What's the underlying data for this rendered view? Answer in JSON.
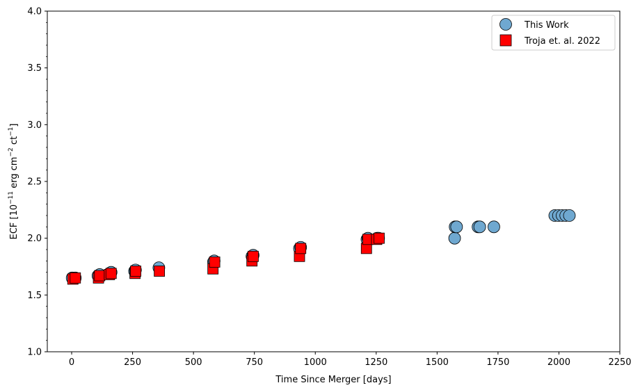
{
  "chart_data": {
    "type": "scatter",
    "xlabel": "Time Since Merger [days]",
    "ylabel": {
      "prefix": "ECF [10",
      "exp1": "−11",
      "mid1": " erg cm",
      "exp2": "−2",
      "mid2": " ct",
      "exp3": "−1",
      "suffix": "]"
    },
    "xlim": [
      -100,
      2250
    ],
    "ylim": [
      1.0,
      4.0
    ],
    "x_ticks": [
      0,
      250,
      500,
      750,
      1000,
      1250,
      1500,
      1750,
      2000,
      2250
    ],
    "y_ticks": [
      1.0,
      1.5,
      2.0,
      2.5,
      3.0,
      3.5,
      4.0
    ],
    "x_ticks_text": [
      "0",
      "250",
      "500",
      "750",
      "1000",
      "1250",
      "1500",
      "1750",
      "2000",
      "2250"
    ],
    "y_ticks_text": [
      "1.0",
      "1.5",
      "2.0",
      "2.5",
      "3.0",
      "3.5",
      "4.0"
    ],
    "grid": false,
    "legend_position": "top-right",
    "series": [
      {
        "name": "This Work",
        "marker": "circle",
        "color": "#6fa8d0",
        "edgecolor": "#000000",
        "points": [
          [
            2,
            1.65
          ],
          [
            15,
            1.65
          ],
          [
            108,
            1.67
          ],
          [
            115,
            1.68
          ],
          [
            155,
            1.69
          ],
          [
            162,
            1.7
          ],
          [
            258,
            1.71
          ],
          [
            262,
            1.72
          ],
          [
            358,
            1.74
          ],
          [
            582,
            1.79
          ],
          [
            585,
            1.8
          ],
          [
            740,
            1.84
          ],
          [
            745,
            1.85
          ],
          [
            935,
            1.91
          ],
          [
            940,
            1.92
          ],
          [
            1212,
            1.99
          ],
          [
            1216,
            2.0
          ],
          [
            1254,
            2.0
          ],
          [
            1260,
            2.0
          ],
          [
            1572,
            2.0
          ],
          [
            1574,
            2.1
          ],
          [
            1580,
            2.1
          ],
          [
            1668,
            2.1
          ],
          [
            1675,
            2.1
          ],
          [
            1733,
            2.1
          ],
          [
            1983,
            2.2
          ],
          [
            1998,
            2.2
          ],
          [
            2013,
            2.2
          ],
          [
            2028,
            2.2
          ],
          [
            2043,
            2.2
          ]
        ]
      },
      {
        "name": "Troja et. al. 2022",
        "marker": "square",
        "color": "#ff0000",
        "edgecolor": "#000000",
        "points": [
          [
            5,
            1.64
          ],
          [
            15,
            1.65
          ],
          [
            110,
            1.65
          ],
          [
            115,
            1.67
          ],
          [
            155,
            1.68
          ],
          [
            162,
            1.69
          ],
          [
            260,
            1.69
          ],
          [
            263,
            1.71
          ],
          [
            360,
            1.71
          ],
          [
            580,
            1.73
          ],
          [
            587,
            1.79
          ],
          [
            740,
            1.8
          ],
          [
            745,
            1.84
          ],
          [
            935,
            1.84
          ],
          [
            940,
            1.91
          ],
          [
            1210,
            1.91
          ],
          [
            1216,
            1.99
          ],
          [
            1252,
            1.99
          ],
          [
            1262,
            2.0
          ]
        ]
      }
    ]
  }
}
